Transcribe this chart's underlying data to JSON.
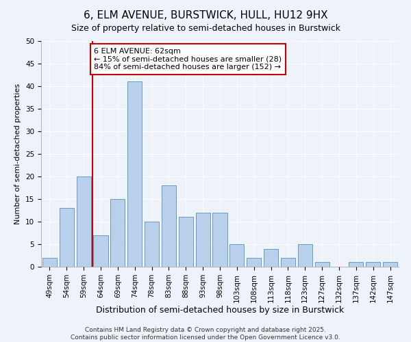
{
  "title": "6, ELM AVENUE, BURSTWICK, HULL, HU12 9HX",
  "subtitle": "Size of property relative to semi-detached houses in Burstwick",
  "xlabel": "Distribution of semi-detached houses by size in Burstwick",
  "ylabel": "Number of semi-detached properties",
  "bar_labels": [
    "49sqm",
    "54sqm",
    "59sqm",
    "64sqm",
    "69sqm",
    "74sqm",
    "78sqm",
    "83sqm",
    "88sqm",
    "93sqm",
    "98sqm",
    "103sqm",
    "108sqm",
    "113sqm",
    "118sqm",
    "123sqm",
    "127sqm",
    "132sqm",
    "137sqm",
    "142sqm",
    "147sqm"
  ],
  "bar_values": [
    2,
    13,
    20,
    7,
    15,
    41,
    10,
    18,
    11,
    12,
    12,
    5,
    2,
    4,
    2,
    5,
    1,
    0,
    1,
    1,
    1
  ],
  "bar_color": "#b8d0ea",
  "bar_edge_color": "#6699cc",
  "vline_color": "#cc0000",
  "annotation_text": "6 ELM AVENUE: 62sqm\n← 15% of semi-detached houses are smaller (28)\n84% of semi-detached houses are larger (152) →",
  "annotation_box_edgecolor": "#cc0000",
  "annotation_box_facecolor": "#ffffff",
  "ylim": [
    0,
    50
  ],
  "yticks": [
    0,
    5,
    10,
    15,
    20,
    25,
    30,
    35,
    40,
    45,
    50
  ],
  "background_color": "#eef2fb",
  "footer_text": "Contains HM Land Registry data © Crown copyright and database right 2025.\nContains public sector information licensed under the Open Government Licence v3.0.",
  "title_fontsize": 11,
  "subtitle_fontsize": 9,
  "xlabel_fontsize": 9,
  "ylabel_fontsize": 8,
  "tick_fontsize": 7.5,
  "annotation_fontsize": 8,
  "footer_fontsize": 6.5
}
